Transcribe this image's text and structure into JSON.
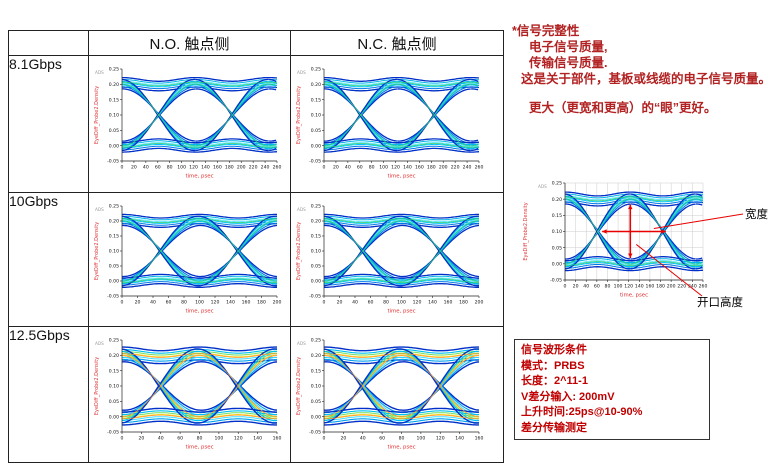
{
  "table": {
    "header": {
      "no": "N.O. 触点侧",
      "nc": "N.C. 触点侧"
    },
    "rows": [
      {
        "label": "8.1Gbps"
      },
      {
        "label": "10Gbps"
      },
      {
        "label": "12.5Gbps"
      }
    ]
  },
  "notes": {
    "color": "#b22222",
    "title": "*信号完整性",
    "line2": "电子信号质量,",
    "line3": "传输信号质量.",
    "line4": "这是关于部件，基板或线缆的电子信号质量。",
    "line5": "更大（更宽和更高）的“眼”更好。"
  },
  "conditions": {
    "color": "#c00000",
    "title": "信号波形条件",
    "items": [
      "模式：PRBS",
      "长度：2^11-1",
      "V差分输入: 200mV",
      "上升时间:25ps@10-90%",
      "差分传输测定"
    ]
  },
  "palettes": {
    "cool": [
      {
        "off": -0.015,
        "color": "#0030c8",
        "w": 1.3
      },
      {
        "off": -0.008,
        "color": "#0078e8",
        "w": 1.0
      },
      {
        "off": -0.002,
        "color": "#00c8f8",
        "w": 1.0
      },
      {
        "off": 0.004,
        "color": "#60e8ff",
        "w": 1.0
      },
      {
        "off": 0.01,
        "color": "#00b4e8",
        "w": 1.0
      },
      {
        "off": 0.016,
        "color": "#0030c8",
        "w": 1.3
      },
      {
        "off": 0.001,
        "color": "#30cc66",
        "w": 0.7
      }
    ],
    "hot": [
      {
        "off": -0.021,
        "color": "#0030c8",
        "w": 1.4
      },
      {
        "off": -0.013,
        "color": "#00a0f0",
        "w": 1.1
      },
      {
        "off": -0.006,
        "color": "#40e0ff",
        "w": 1.0
      },
      {
        "off": 0.001,
        "color": "#ffd820",
        "w": 1.0
      },
      {
        "off": 0.007,
        "color": "#70e060",
        "w": 1.0
      },
      {
        "off": 0.013,
        "color": "#00c0f0",
        "w": 1.1
      },
      {
        "off": 0.021,
        "color": "#0030c8",
        "w": 1.4
      },
      {
        "off": -0.001,
        "color": "#ff9030",
        "w": 0.7
      }
    ]
  },
  "chart_data": [
    {
      "id": "eye-8.1gbps-no",
      "type": "heatmap",
      "subtype": "eye-density",
      "xlabel": "time, psec",
      "ylabel": "EyeDiff_Probe2.Density",
      "watermark": "ADS",
      "xlim": [
        0,
        260
      ],
      "ylim": [
        -0.05,
        0.25
      ],
      "xtick": 20,
      "ytick": 0.05,
      "unit_interval_ps": 123.5,
      "crossings_ps": [
        61.5,
        185
      ],
      "high_level": 0.2,
      "low_level": 0.0,
      "grid": false,
      "palette": "cool"
    },
    {
      "id": "eye-8.1gbps-nc",
      "type": "heatmap",
      "subtype": "eye-density",
      "xlabel": "time, psec",
      "ylabel": "EyeDiff_Probe2.Density",
      "watermark": "ADS",
      "xlim": [
        0,
        260
      ],
      "ylim": [
        -0.05,
        0.25
      ],
      "xtick": 20,
      "ytick": 0.05,
      "unit_interval_ps": 123.5,
      "crossings_ps": [
        61.5,
        185
      ],
      "high_level": 0.2,
      "low_level": 0.0,
      "grid": false,
      "palette": "cool"
    },
    {
      "id": "eye-10gbps-no",
      "type": "heatmap",
      "subtype": "eye-density",
      "xlabel": "time, psec",
      "ylabel": "EyeDiff_Probe2.Density",
      "watermark": "ADS",
      "xlim": [
        0,
        200
      ],
      "ylim": [
        -0.05,
        0.25
      ],
      "xtick": 20,
      "ytick": 0.05,
      "unit_interval_ps": 100,
      "crossings_ps": [
        50,
        150
      ],
      "high_level": 0.2,
      "low_level": 0.0,
      "grid": false,
      "palette": "cool"
    },
    {
      "id": "eye-10gbps-nc",
      "type": "heatmap",
      "subtype": "eye-density",
      "xlabel": "time, psec",
      "ylabel": "EyeDiff_Probe2.Density",
      "watermark": "ADS",
      "xlim": [
        0,
        200
      ],
      "ylim": [
        -0.05,
        0.25
      ],
      "xtick": 20,
      "ytick": 0.05,
      "unit_interval_ps": 100,
      "crossings_ps": [
        50,
        150
      ],
      "high_level": 0.2,
      "low_level": 0.0,
      "grid": false,
      "palette": "cool"
    },
    {
      "id": "eye-12.5gbps-no",
      "type": "heatmap",
      "subtype": "eye-density",
      "xlabel": "time, psec",
      "ylabel": "EyeDiff_Probe2.Density",
      "watermark": "ADS",
      "xlim": [
        0,
        160
      ],
      "ylim": [
        -0.05,
        0.25
      ],
      "xtick": 20,
      "ytick": 0.05,
      "unit_interval_ps": 80,
      "crossings_ps": [
        40,
        120
      ],
      "high_level": 0.2,
      "low_level": 0.0,
      "grid": false,
      "palette": "hot"
    },
    {
      "id": "eye-12.5gbps-nc",
      "type": "heatmap",
      "subtype": "eye-density",
      "xlabel": "time, psec",
      "ylabel": "EyeDiff_Probe2.Density",
      "watermark": "ADS",
      "xlim": [
        0,
        160
      ],
      "ylim": [
        -0.05,
        0.25
      ],
      "xtick": 20,
      "ytick": 0.05,
      "unit_interval_ps": 80,
      "crossings_ps": [
        40,
        120
      ],
      "high_level": 0.2,
      "low_level": 0.0,
      "grid": false,
      "palette": "hot"
    },
    {
      "id": "eye-annotated",
      "type": "heatmap",
      "subtype": "eye-density",
      "xlabel": "time, psec",
      "ylabel": "EyeDiff_Probe2.Density",
      "watermark": "ADS",
      "xlim": [
        0,
        260
      ],
      "ylim": [
        -0.05,
        0.25
      ],
      "xtick": 20,
      "ytick": 0.05,
      "unit_interval_ps": 123.5,
      "crossings_ps": [
        61.5,
        185
      ],
      "high_level": 0.2,
      "low_level": 0.0,
      "grid": true,
      "palette": "cool",
      "annotations": {
        "color": "#e80000",
        "width_label": "宽度",
        "height_label": "开口高度",
        "h_arrow": {
          "x1_ps": 70,
          "x2_ps": 190,
          "v": 0.1
        },
        "v_arrow": {
          "t_ps": 123,
          "v1": 0.183,
          "v2": 0.018
        }
      }
    }
  ]
}
